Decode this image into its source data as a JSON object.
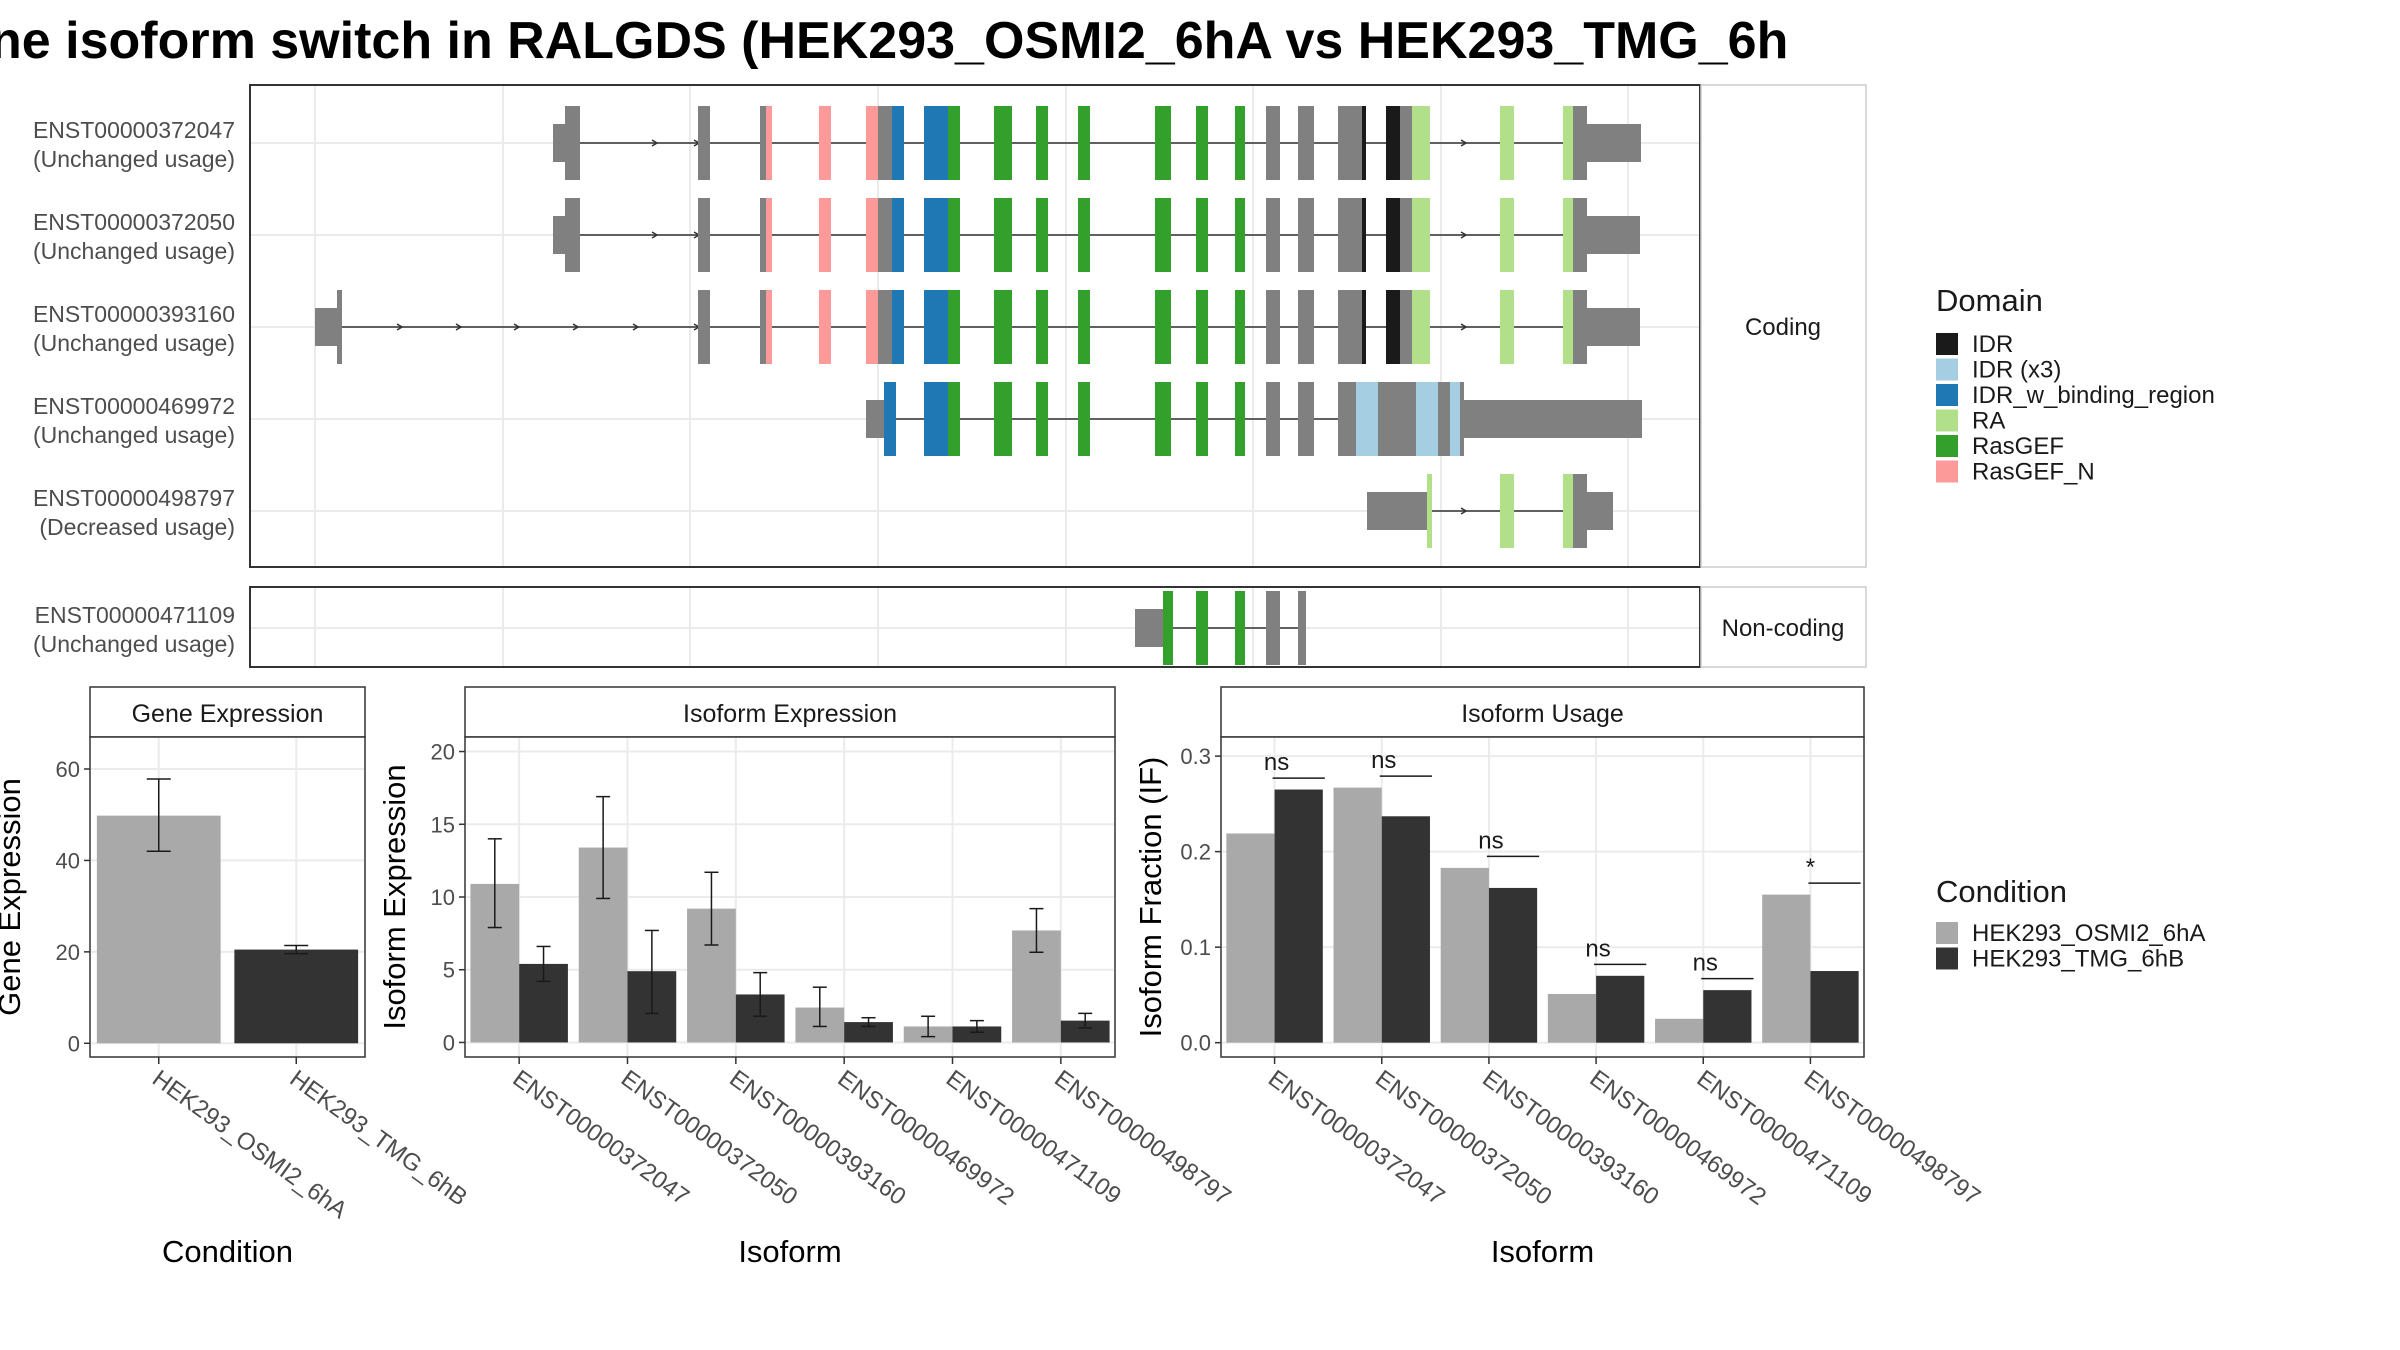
{
  "title": "ne isoform switch in RALGDS (HEK293_OSMI2_6hA vs HEK293_TMG_6h",
  "colors": {
    "IDR": "#1a1a1a",
    "IDR (x3)": "#a6cee3",
    "IDR_w_binding_region": "#1f78b4",
    "RA": "#b2df8a",
    "RasGEF": "#33a02c",
    "RasGEF_N": "#fb9a99",
    "exon": "#808080",
    "cond_a": "#a9a9a9",
    "cond_b": "#333333"
  },
  "facets": {
    "coding": "Coding",
    "noncoding": "Non-coding"
  },
  "transcripts": [
    {
      "id": "ENST00000372047",
      "usage": "(Unchanged usage)"
    },
    {
      "id": "ENST00000372050",
      "usage": "(Unchanged usage)"
    },
    {
      "id": "ENST00000393160",
      "usage": "(Unchanged usage)"
    },
    {
      "id": "ENST00000469972",
      "usage": "(Unchanged usage)"
    },
    {
      "id": "ENST00000498797",
      "usage": " (Decreased usage)"
    },
    {
      "id": "ENST00000471109",
      "usage": "(Unchanged usage)"
    }
  ],
  "legend_domain": {
    "title": "Domain",
    "items": [
      "IDR",
      "IDR (x3)",
      "IDR_w_binding_region",
      "RA",
      "RasGEF",
      "RasGEF_N"
    ]
  },
  "legend_condition": {
    "title": "Condition",
    "items": [
      "HEK293_OSMI2_6hA",
      "HEK293_TMG_6hB"
    ]
  },
  "chart_data": [
    {
      "type": "bar",
      "title": "Gene Expression",
      "xlabel": "Condition",
      "ylabel": "Gene Expression",
      "categories": [
        "HEK293_OSMI2_6hA",
        "HEK293_TMG_6hB"
      ],
      "values": [
        49.8,
        20.5
      ],
      "error": [
        [
          42.0,
          57.8
        ],
        [
          19.6,
          21.4
        ]
      ],
      "ylim": [
        -3,
        67
      ],
      "yticks": [
        0,
        20,
        40,
        60
      ]
    },
    {
      "type": "bar",
      "title": "Isoform Expression",
      "xlabel": "Isoform",
      "ylabel": "Isoform Expression",
      "categories": [
        "ENST00000372047",
        "ENST00000372050",
        "ENST00000393160",
        "ENST00000469972",
        "ENST00000471109",
        "ENST00000498797"
      ],
      "series": [
        {
          "name": "HEK293_OSMI2_6hA",
          "values": [
            10.9,
            13.4,
            9.2,
            2.4,
            1.1,
            7.7
          ],
          "error": [
            [
              7.9,
              14.0
            ],
            [
              9.9,
              16.9
            ],
            [
              6.7,
              11.7
            ],
            [
              1.1,
              3.8
            ],
            [
              0.4,
              1.8
            ],
            [
              6.2,
              9.2
            ]
          ]
        },
        {
          "name": "HEK293_TMG_6hB",
          "values": [
            5.4,
            4.9,
            3.3,
            1.4,
            1.1,
            1.5
          ],
          "error": [
            [
              4.2,
              6.6
            ],
            [
              2.0,
              7.7
            ],
            [
              1.8,
              4.8
            ],
            [
              1.1,
              1.7
            ],
            [
              0.7,
              1.5
            ],
            [
              1.0,
              2.0
            ]
          ]
        }
      ],
      "ylim": [
        -1,
        21
      ],
      "yticks": [
        0,
        5,
        10,
        15,
        20
      ]
    },
    {
      "type": "bar",
      "title": "Isoform Usage",
      "xlabel": "Isoform",
      "ylabel": "Isoform Fraction (IF)",
      "categories": [
        "ENST00000372047",
        "ENST00000372050",
        "ENST00000393160",
        "ENST00000469972",
        "ENST00000471109",
        "ENST00000498797"
      ],
      "series": [
        {
          "name": "HEK293_OSMI2_6hA",
          "values": [
            0.219,
            0.267,
            0.183,
            0.051,
            0.025,
            0.155
          ]
        },
        {
          "name": "HEK293_TMG_6hB",
          "values": [
            0.265,
            0.237,
            0.162,
            0.07,
            0.055,
            0.075
          ]
        }
      ],
      "significance": [
        "ns",
        "ns",
        "ns",
        "ns",
        "ns",
        "*"
      ],
      "ylim": [
        -0.015,
        0.32
      ],
      "yticks": [
        0.0,
        0.1,
        0.2,
        0.3
      ]
    }
  ]
}
